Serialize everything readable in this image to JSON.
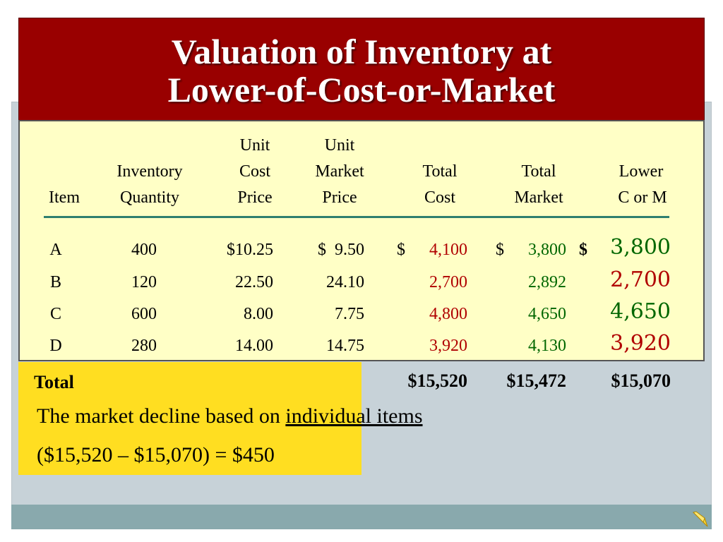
{
  "title": {
    "line1": "Valuation of Inventory at",
    "line2": "Lower-of-Cost-or-Market"
  },
  "table": {
    "headers": {
      "item": "Item",
      "inventory": [
        "Inventory",
        "Quantity"
      ],
      "unit_cost": [
        "Unit",
        "Cost",
        "Price"
      ],
      "unit_market": [
        "Unit",
        "Market",
        "Price"
      ],
      "total_cost": [
        "Total",
        "Cost"
      ],
      "total_market": [
        "Total",
        "Market"
      ],
      "lower": [
        "Lower",
        "C or M"
      ]
    },
    "rows": [
      {
        "item": "A",
        "qty": "400",
        "unit_cost": "$10.25",
        "unit_market": "$  9.50",
        "total_cost_prefix": "$",
        "total_cost": "4,100",
        "total_market_prefix": "$",
        "total_market": "3,800",
        "lower_prefix": "$",
        "lower": "3,800"
      },
      {
        "item": "B",
        "qty": "120",
        "unit_cost": "22.50",
        "unit_market": "24.10",
        "total_cost_prefix": "",
        "total_cost": "2,700",
        "total_market_prefix": "",
        "total_market": "2,892",
        "lower_prefix": "",
        "lower": "2,700"
      },
      {
        "item": "C",
        "qty": "600",
        "unit_cost": "8.00",
        "unit_market": "7.75",
        "total_cost_prefix": "",
        "total_cost": "4,800",
        "total_market_prefix": "",
        "total_market": "4,650",
        "lower_prefix": "",
        "lower": "4,650"
      },
      {
        "item": "D",
        "qty": "280",
        "unit_cost": "14.00",
        "unit_market": "14.75",
        "total_cost_prefix": "",
        "total_cost": "3,920",
        "total_market_prefix": "",
        "total_market": "4,130",
        "lower_prefix": "",
        "lower": "3,920"
      }
    ],
    "totals": {
      "label": "Total",
      "total_cost": "$15,520",
      "total_market": "$15,472",
      "lower": "$15,070"
    }
  },
  "note": {
    "line1_text": "The market decline based on ",
    "line1_emphasis": "individual items",
    "line2": "($15,520 – $15,070) = $450"
  },
  "colors": {
    "title_bar": "#990000",
    "table_panel": "#ffffc6",
    "highlight_box": "#ffde21",
    "cost_text": "#b00000",
    "market_text": "#006600",
    "divider": "#2f7f6f",
    "slide_background": "#c7d2d8",
    "bottom_bar": "#89a9ad"
  },
  "icons": {
    "corner": "pencil-icon"
  }
}
